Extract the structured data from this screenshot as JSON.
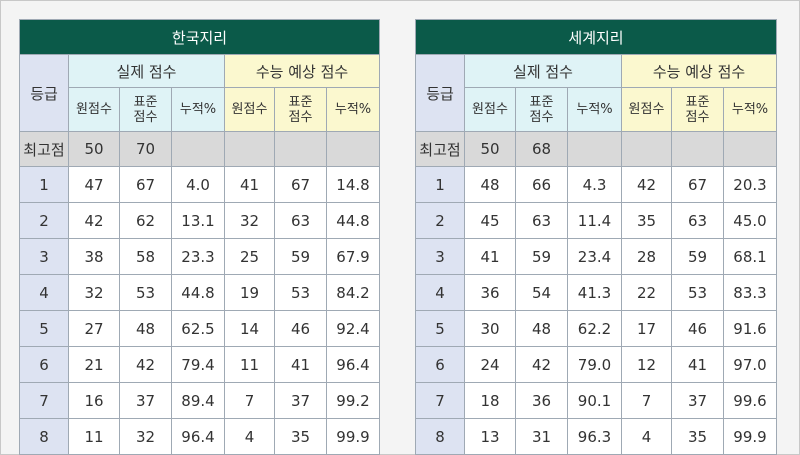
{
  "tables": [
    {
      "title": "한국지리",
      "grade_header": "등급",
      "actual_header": "실제 점수",
      "expected_header": "수능 예상 점수",
      "sub_headers": {
        "raw": "원점수",
        "std_line1": "표준",
        "std_line2": "점수",
        "cum": "누적%"
      },
      "max_row": {
        "label": "최고점",
        "raw": "50",
        "std": "70"
      },
      "rows": [
        {
          "grade": "1",
          "a_raw": "47",
          "a_std": "67",
          "a_cum": "4.0",
          "e_raw": "41",
          "e_std": "67",
          "e_cum": "14.8"
        },
        {
          "grade": "2",
          "a_raw": "42",
          "a_std": "62",
          "a_cum": "13.1",
          "e_raw": "32",
          "e_std": "63",
          "e_cum": "44.8"
        },
        {
          "grade": "3",
          "a_raw": "38",
          "a_std": "58",
          "a_cum": "23.3",
          "e_raw": "25",
          "e_std": "59",
          "e_cum": "67.9"
        },
        {
          "grade": "4",
          "a_raw": "32",
          "a_std": "53",
          "a_cum": "44.8",
          "e_raw": "19",
          "e_std": "53",
          "e_cum": "84.2"
        },
        {
          "grade": "5",
          "a_raw": "27",
          "a_std": "48",
          "a_cum": "62.5",
          "e_raw": "14",
          "e_std": "46",
          "e_cum": "92.4"
        },
        {
          "grade": "6",
          "a_raw": "21",
          "a_std": "42",
          "a_cum": "79.4",
          "e_raw": "11",
          "e_std": "41",
          "e_cum": "96.4"
        },
        {
          "grade": "7",
          "a_raw": "16",
          "a_std": "37",
          "a_cum": "89.4",
          "e_raw": "7",
          "e_std": "37",
          "e_cum": "99.2"
        },
        {
          "grade": "8",
          "a_raw": "11",
          "a_std": "32",
          "a_cum": "96.4",
          "e_raw": "4",
          "e_std": "35",
          "e_cum": "99.9"
        }
      ]
    },
    {
      "title": "세계지리",
      "grade_header": "등급",
      "actual_header": "실제 점수",
      "expected_header": "수능 예상 점수",
      "sub_headers": {
        "raw": "원점수",
        "std_line1": "표준",
        "std_line2": "점수",
        "cum": "누적%"
      },
      "max_row": {
        "label": "최고점",
        "raw": "50",
        "std": "68"
      },
      "rows": [
        {
          "grade": "1",
          "a_raw": "48",
          "a_std": "66",
          "a_cum": "4.3",
          "e_raw": "42",
          "e_std": "67",
          "e_cum": "20.3"
        },
        {
          "grade": "2",
          "a_raw": "45",
          "a_std": "63",
          "a_cum": "11.4",
          "e_raw": "35",
          "e_std": "63",
          "e_cum": "45.0"
        },
        {
          "grade": "3",
          "a_raw": "41",
          "a_std": "59",
          "a_cum": "23.4",
          "e_raw": "28",
          "e_std": "59",
          "e_cum": "68.1"
        },
        {
          "grade": "4",
          "a_raw": "36",
          "a_std": "54",
          "a_cum": "41.3",
          "e_raw": "22",
          "e_std": "53",
          "e_cum": "83.3"
        },
        {
          "grade": "5",
          "a_raw": "30",
          "a_std": "48",
          "a_cum": "62.2",
          "e_raw": "17",
          "e_std": "46",
          "e_cum": "91.6"
        },
        {
          "grade": "6",
          "a_raw": "24",
          "a_std": "42",
          "a_cum": "79.0",
          "e_raw": "12",
          "e_std": "41",
          "e_cum": "97.0"
        },
        {
          "grade": "7",
          "a_raw": "18",
          "a_std": "36",
          "a_cum": "90.1",
          "e_raw": "7",
          "e_std": "37",
          "e_cum": "99.6"
        },
        {
          "grade": "8",
          "a_raw": "13",
          "a_std": "31",
          "a_cum": "96.3",
          "e_raw": "4",
          "e_std": "35",
          "e_cum": "99.9"
        }
      ]
    }
  ]
}
